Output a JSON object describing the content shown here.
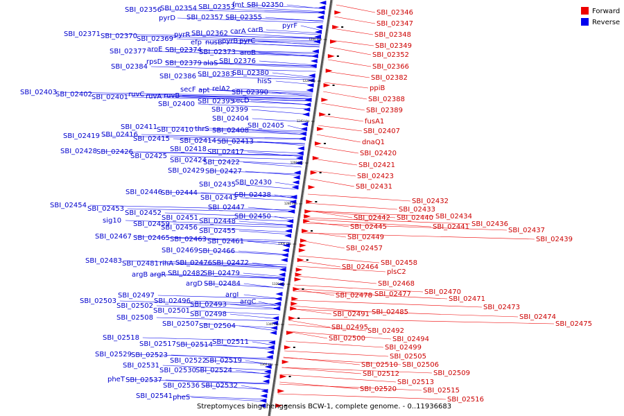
{
  "legend": {
    "forward": {
      "label": "Forward",
      "color": "#ee0000"
    },
    "reverse": {
      "label": "Reverse",
      "color": "#0000ee"
    }
  },
  "caption": "Streptomyces bingchenggensis BCW-1, complete genome. - 0..11936683",
  "axis_ticks": [
    "1200 kbp",
    "1220 kbp",
    "1240 kbp",
    "1260 kbp",
    "1280 kbp",
    "1300 kbp",
    "1320 kbp",
    "1340 kbp",
    "1360 kbp"
  ],
  "reverse_labels": [
    "SBI_02356",
    "SBI_02354",
    "SBI_02353",
    "fmt",
    "SBI_02350",
    "pyrD",
    "SBI_02357",
    "SBI_02355",
    "pyrF",
    "carB",
    "pyrR",
    "SBI_02362",
    "carA",
    "SBI_02371",
    "SBI_02370",
    "SBI_02369",
    "efp",
    "nusB",
    "pyrB",
    "pyrC",
    "SBI_02377",
    "aroE",
    "SBI_02374",
    "SBI_02373",
    "aroB",
    "rpsD",
    "SBI_02379",
    "alaS",
    "SBI_02376",
    "SBI_02384",
    "SBI_02386",
    "SBI_02383",
    "SBI_02380",
    "hisS",
    "SBI_02403",
    "SBI_02402",
    "SBI_02401",
    "ruvC",
    "ruvA",
    "ruvB",
    "secF",
    "apt",
    "relA2",
    "SBI_02390",
    "SBI_02400",
    "SBI_02395",
    "secD",
    "SBI_02399",
    "SBI_02404",
    "SBI_02411",
    "SBI_02410",
    "thrS",
    "SBI_02408",
    "SBI_02405",
    "SBI_02419",
    "SBI_02416",
    "SBI_02415",
    "SBI_02414",
    "SBI_02413",
    "SBI_02428",
    "SBI_02426",
    "SBI_02418",
    "SBI_02417",
    "SBI_02425",
    "SBI_02424",
    "SBI_02422",
    "SBI_02429",
    "SBI_02427",
    "SBI_02435",
    "SBI_02430",
    "SBI_02446",
    "SBI_02444",
    "SBI_02443",
    "SBI_02438",
    "SBI_02454",
    "SBI_02453",
    "SBI_02447",
    "SBI_02452",
    "SBI_02451",
    "SBI_02448",
    "sig10",
    "SBI_02459",
    "SBI_02450",
    "SBI_02456",
    "SBI_02455",
    "SBI_02467",
    "SBI_02465",
    "SBI_02463",
    "SBI_02461",
    "SBI_02469",
    "SBI_02466",
    "SBI_02483",
    "SBI_02481",
    "rihA",
    "SBI_02476",
    "SBI_02472",
    "argB",
    "argR",
    "SBI_02482",
    "SBI_02479",
    "argD",
    "SBI_02484",
    "SBI_02497",
    "argI",
    "SBI_02503",
    "SBI_02496",
    "SBI_02493",
    "argC",
    "SBI_02502",
    "SBI_02501",
    "SBI_02498",
    "SBI_02508",
    "SBI_02507",
    "SBI_02504",
    "SBI_02518",
    "SBI_02517",
    "SBI_02514",
    "SBI_02511",
    "SBI_02529",
    "SBI_02523",
    "SBI_02522",
    "SBI_02519",
    "SBI_02531",
    "SBI_02530",
    "SBI_02524",
    "pheT",
    "SBI_02537",
    "SBI_02536",
    "SBI_02532",
    "SBI_02541",
    "pheS"
  ],
  "forward_labels": [
    "SBI_02346",
    "SBI_02347",
    "SBI_02348",
    "SBI_02349",
    "SBI_02352",
    "SBI_02366",
    "SBI_02382",
    "ppiB",
    "SBI_02388",
    "SBI_02389",
    "fusA1",
    "SBI_02407",
    "dnaQ1",
    "SBI_02420",
    "SBI_02421",
    "SBI_02423",
    "SBI_02431",
    "SBI_02432",
    "SBI_02433",
    "SBI_02434",
    "SBI_02442",
    "SBI_02440",
    "SBI_02436",
    "SBI_02445",
    "SBI_02441",
    "SBI_02437",
    "SBI_02439",
    "SBI_02449",
    "SBI_02457",
    "SBI_02458",
    "SBI_02464",
    "plsC2",
    "SBI_02468",
    "SBI_02470",
    "SBI_02478",
    "SBI_02477",
    "SBI_02471",
    "SBI_02473",
    "SBI_02485",
    "SBI_02491",
    "SBI_02474",
    "SBI_02495",
    "SBI_02492",
    "SBI_02475",
    "SBI_02494",
    "SBI_02500",
    "SBI_02499",
    "SBI_02505",
    "SBI_02510",
    "SBI_02506",
    "SBI_02512",
    "SBI_02509",
    "SBI_02513",
    "SBI_02520",
    "SBI_02515",
    "SBI_02516"
  ]
}
